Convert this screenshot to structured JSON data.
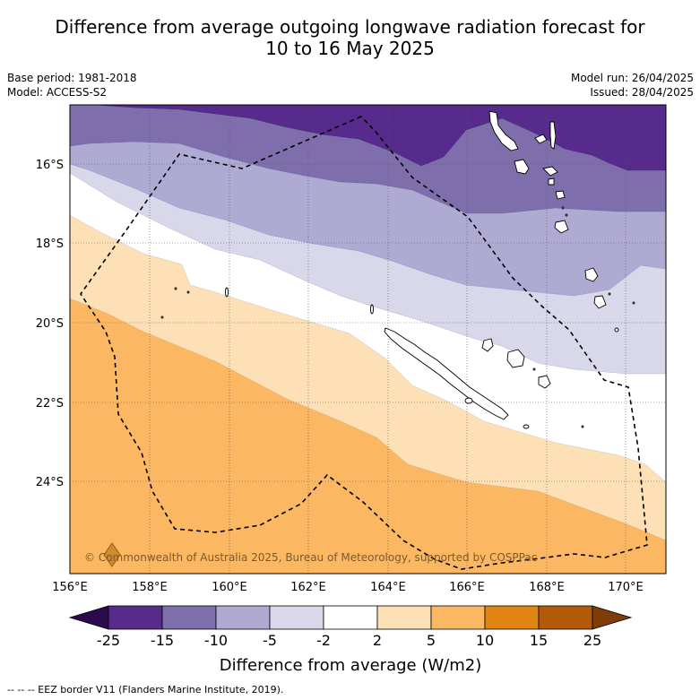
{
  "title_line1": "Difference from average outgoing longwave radiation forecast for",
  "title_line2": "10 to 16 May 2025",
  "base_period": "Base period: 1981-2018",
  "model": "Model: ACCESS-S2",
  "model_run": "Model run: 26/04/2025",
  "issued": "Issued: 28/04/2025",
  "copyright": "© Commonwealth of Australia 2025, Bureau of Meteorology, supported by COSPPac",
  "legend_label": "Difference from average (W/m2)",
  "footer": "--  --  -- EEZ border V11 (Flanders Marine Institute, 2019).",
  "lon_ticks": [
    "156°E",
    "158°E",
    "160°E",
    "162°E",
    "164°E",
    "166°E",
    "168°E",
    "170°E"
  ],
  "lat_ticks": [
    "16°S",
    "18°S",
    "20°S",
    "22°S",
    "24°S"
  ],
  "colorbar": {
    "ticks": [
      "-25",
      "-15",
      "-10",
      "-5",
      "-2",
      "2",
      "5",
      "10",
      "15",
      "25"
    ],
    "colors": [
      "#562b8c",
      "#7e6fac",
      "#aeaad2",
      "#d8d8ea",
      "#ffffff",
      "#fde0b6",
      "#fcb763",
      "#e08413",
      "#b35a0a"
    ],
    "under_color": "#2d0a4e",
    "over_color": "#7f3b08"
  }
}
